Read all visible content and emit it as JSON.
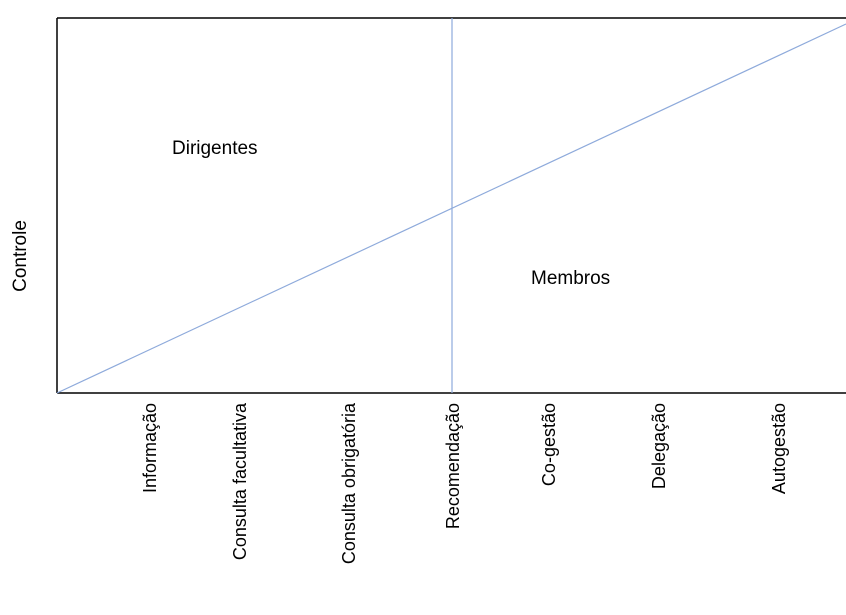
{
  "diagram": {
    "y_axis_label": "Controle",
    "regions": {
      "upper": "Dirigentes",
      "lower": "Membros"
    },
    "categories": [
      "Informação",
      "Consulta facultativa",
      "Consulta obrigatória",
      "Recomendação",
      "Co-gestão",
      "Delegação",
      "Autogestão"
    ],
    "colors": {
      "frame": "#000000",
      "divider": "#8eaadb",
      "text": "#000000"
    }
  }
}
